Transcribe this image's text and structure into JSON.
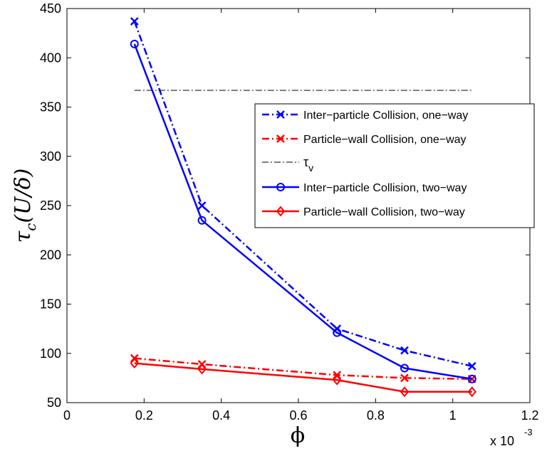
{
  "chart_data": {
    "type": "line",
    "title": "",
    "xlabel": "ϕ",
    "ylabel": "τ_c(U/δ)",
    "xlabel_display": "ϕ",
    "ylabel_display": {
      "main": "τ",
      "sub": "c",
      "rest": "(U/δ)"
    },
    "x_multiplier": "x 10",
    "x_multiplier_exp": "-3",
    "xlim": [
      0,
      1.2
    ],
    "ylim": [
      50,
      450
    ],
    "xticks": [
      0,
      0.2,
      0.4,
      0.6,
      0.8,
      1,
      1.2
    ],
    "xtick_labels": [
      "0",
      "0.2",
      "0.4",
      "0.6",
      "0.8",
      "1",
      "1.2"
    ],
    "yticks": [
      50,
      100,
      150,
      200,
      250,
      300,
      350,
      400,
      450
    ],
    "ytick_labels": [
      "50",
      "100",
      "150",
      "200",
      "250",
      "300",
      "350",
      "400",
      "450"
    ],
    "grid": false,
    "legend_position": "right-middle",
    "series": [
      {
        "name": "Inter−particle Collision, one−way",
        "legend_text": "Inter−particle Collision, one−way",
        "color": "#0000ff",
        "line_style": "dashdot",
        "marker": "x",
        "x": [
          0.175,
          0.35,
          0.7,
          0.875,
          1.05
        ],
        "y": [
          437,
          250,
          125,
          103,
          87
        ]
      },
      {
        "name": "Particle−wall Collision, one−way",
        "legend_text": "Particle−wall Collision, one−way",
        "color": "#ff0000",
        "line_style": "dashdot",
        "marker": "x",
        "x": [
          0.175,
          0.35,
          0.7,
          0.875,
          1.05
        ],
        "y": [
          95,
          89,
          78,
          75,
          74
        ]
      },
      {
        "name": "τv",
        "legend_text": {
          "main": "τ",
          "sub": "v"
        },
        "color": "#000000",
        "line_style": "dashdot-thin",
        "marker": "none",
        "x": [
          0.175,
          1.05
        ],
        "y": [
          367,
          367
        ]
      },
      {
        "name": "Inter−particle Collision, two−way",
        "legend_text": "Inter−particle Collision, two−way",
        "color": "#0000ff",
        "line_style": "solid",
        "marker": "o",
        "x": [
          0.175,
          0.35,
          0.7,
          0.875,
          1.05
        ],
        "y": [
          414,
          235,
          121,
          85,
          74
        ]
      },
      {
        "name": "Particle−wall Collision, two−way",
        "legend_text": "Particle−wall Collision, two−way",
        "color": "#ff0000",
        "line_style": "solid",
        "marker": "diamond",
        "x": [
          0.175,
          0.35,
          0.7,
          0.875,
          1.05
        ],
        "y": [
          90,
          84,
          73,
          61,
          61
        ]
      }
    ]
  }
}
